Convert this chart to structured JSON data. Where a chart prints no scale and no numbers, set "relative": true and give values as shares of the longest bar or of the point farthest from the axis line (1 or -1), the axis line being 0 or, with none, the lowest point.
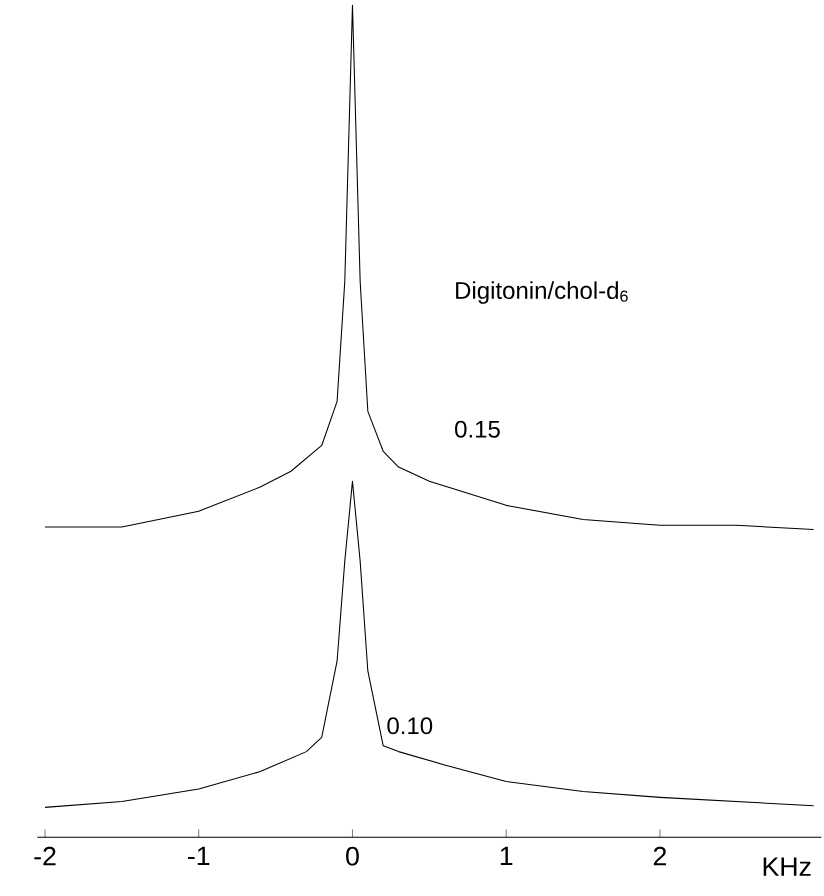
{
  "chart_data": {
    "type": "line",
    "relative": true,
    "xlabel": "KHz",
    "annotations": [
      "Digitonin/chol-d$_{6}$"
    ],
    "xlim": [
      -2.05,
      3.05
    ],
    "xticks": [
      -2,
      -1,
      0,
      1,
      2
    ],
    "color": "#000000",
    "series": [
      {
        "name": "0.15",
        "x": [
          -2,
          -1.5,
          -1,
          -0.6,
          -0.4,
          -0.2,
          -0.1,
          -0.05,
          0,
          0.05,
          0.1,
          0.2,
          0.3,
          0.5,
          1,
          1.5,
          2,
          2.5,
          3
        ],
        "values": [
          0.373,
          0.373,
          0.392,
          0.421,
          0.44,
          0.471,
          0.524,
          0.668,
          1,
          0.668,
          0.512,
          0.464,
          0.445,
          0.428,
          0.399,
          0.382,
          0.375,
          0.375,
          0.37
        ]
      },
      {
        "name": "0.10",
        "x": [
          -2,
          -1.5,
          -1,
          -0.6,
          -0.3,
          -0.2,
          -0.1,
          -0.05,
          0,
          0.05,
          0.1,
          0.2,
          0.3,
          0.6,
          1,
          1.5,
          2,
          2.5,
          3
        ],
        "values": [
          0.036,
          0.043,
          0.058,
          0.079,
          0.103,
          0.12,
          0.212,
          0.332,
          0.428,
          0.332,
          0.2,
          0.11,
          0.103,
          0.087,
          0.067,
          0.055,
          0.048,
          0.043,
          0.038
        ]
      }
    ]
  }
}
